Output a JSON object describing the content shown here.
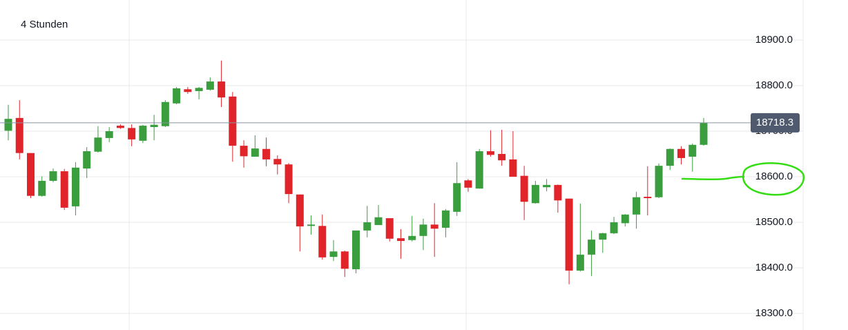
{
  "chart_data": {
    "type": "candlestick",
    "title": "4 Stunden",
    "open": [
      18701,
      18729,
      18652,
      18558,
      18591,
      18612,
      18535,
      18618,
      18655,
      18685,
      18712,
      18707,
      18679,
      18709,
      18711,
      18761,
      18792,
      18788,
      18791,
      18809,
      18776,
      18668,
      18644,
      18661,
      18639,
      18627,
      18561,
      18492,
      18492,
      18424,
      18436,
      18397,
      18482,
      18494,
      18509,
      18465,
      18461,
      18470,
      18495,
      18488,
      18523,
      18592,
      18574,
      18656,
      18650,
      18638,
      18602,
      18542,
      18577,
      18582,
      18552,
      18394,
      18429,
      18462,
      18476,
      18498,
      18517,
      18556,
      18555,
      18624,
      18661,
      18644,
      18670
    ],
    "high": [
      18758,
      18768,
      18652,
      18601,
      18618,
      18617,
      18632,
      18665,
      18711,
      18709,
      18715,
      18715,
      18714,
      18736,
      18768,
      18797,
      18797,
      18797,
      18818,
      18855,
      18786,
      18680,
      18691,
      18686,
      18647,
      18630,
      18561,
      18515,
      18517,
      18461,
      18438,
      18482,
      18536,
      18538,
      18509,
      18485,
      18514,
      18508,
      18542,
      18529,
      18632,
      18595,
      18661,
      18702,
      18703,
      18700,
      18624,
      18591,
      18595,
      18583,
      18552,
      18541,
      18482,
      18477,
      18512,
      18518,
      18567,
      18623,
      18629,
      18662,
      18667,
      18673,
      18729
    ],
    "low": [
      18680,
      18638,
      18553,
      18556,
      18588,
      18527,
      18515,
      18597,
      18653,
      18676,
      18705,
      18667,
      18674,
      18680,
      18709,
      18759,
      18782,
      18770,
      18789,
      18753,
      18633,
      18620,
      18644,
      18623,
      18605,
      18542,
      18436,
      18473,
      18418,
      18415,
      18380,
      18388,
      18467,
      18494,
      18458,
      18420,
      18458,
      18439,
      18424,
      18467,
      18514,
      18567,
      18574,
      18644,
      18624,
      18600,
      18505,
      18541,
      18568,
      18521,
      18364,
      18392,
      18382,
      18433,
      18474,
      18491,
      18486,
      18515,
      18553,
      18615,
      18627,
      18611,
      18668
    ],
    "close": [
      18727,
      18652,
      18558,
      18591,
      18612,
      18532,
      18620,
      18656,
      18686,
      18700,
      18707,
      18682,
      18712,
      18714,
      18764,
      18794,
      18786,
      18795,
      18809,
      18774,
      18668,
      18645,
      18662,
      18638,
      18627,
      18562,
      18491,
      18495,
      18423,
      18436,
      18398,
      18482,
      18500,
      18511,
      18464,
      18459,
      18470,
      18495,
      18486,
      18526,
      18586,
      18576,
      18656,
      18648,
      18636,
      18600,
      18545,
      18582,
      18582,
      18548,
      18394,
      18429,
      18462,
      18476,
      18500,
      18517,
      18555,
      18553,
      18624,
      18661,
      18641,
      18670,
      18718.3
    ],
    "up_color": "#3a9d3e",
    "down_color": "#e0242a",
    "last_price": 18718.3,
    "ylim": [
      18263.6,
      18987.9
    ],
    "yticks": [
      {
        "value": 18300,
        "label": "18300.0"
      },
      {
        "value": 18400,
        "label": "18400.0"
      },
      {
        "value": 18500,
        "label": "18500.0"
      },
      {
        "value": 18600,
        "label": "18600.0"
      },
      {
        "value": 18700,
        "label": "18700.0"
      },
      {
        "value": 18800,
        "label": "18800.0"
      },
      {
        "value": 18900,
        "label": "18900.0"
      }
    ],
    "grid": true
  }
}
